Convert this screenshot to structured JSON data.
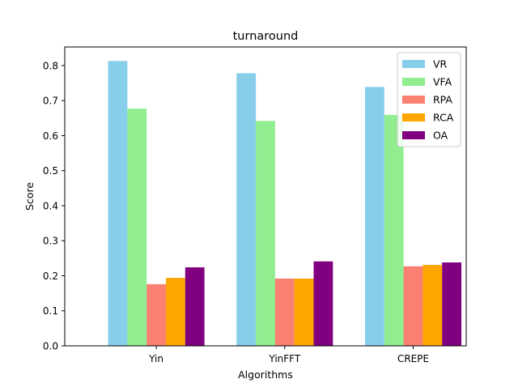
{
  "chart_data": {
    "type": "bar",
    "title": "turnaround",
    "xlabel": "Algorithms",
    "ylabel": "Score",
    "categories": [
      "Yin",
      "YinFFT",
      "CREPE"
    ],
    "ylim": [
      0,
      0.853
    ],
    "yticks": [
      0.0,
      0.1,
      0.2,
      0.3,
      0.4,
      0.5,
      0.6,
      0.7,
      0.8
    ],
    "ytick_labels": [
      "0.0",
      "0.1",
      "0.2",
      "0.3",
      "0.4",
      "0.5",
      "0.6",
      "0.7",
      "0.8"
    ],
    "grid": false,
    "legend_position": "top-right",
    "series": [
      {
        "name": "VR",
        "color": "#87ceeb",
        "values": [
          0.813,
          0.778,
          0.739
        ]
      },
      {
        "name": "VFA",
        "color": "#90ee90",
        "values": [
          0.677,
          0.642,
          0.659
        ]
      },
      {
        "name": "RPA",
        "color": "#fa8072",
        "values": [
          0.176,
          0.192,
          0.227
        ]
      },
      {
        "name": "RCA",
        "color": "#ffa500",
        "values": [
          0.194,
          0.192,
          0.231
        ]
      },
      {
        "name": "OA",
        "color": "#800080",
        "values": [
          0.224,
          0.241,
          0.238
        ]
      }
    ]
  }
}
